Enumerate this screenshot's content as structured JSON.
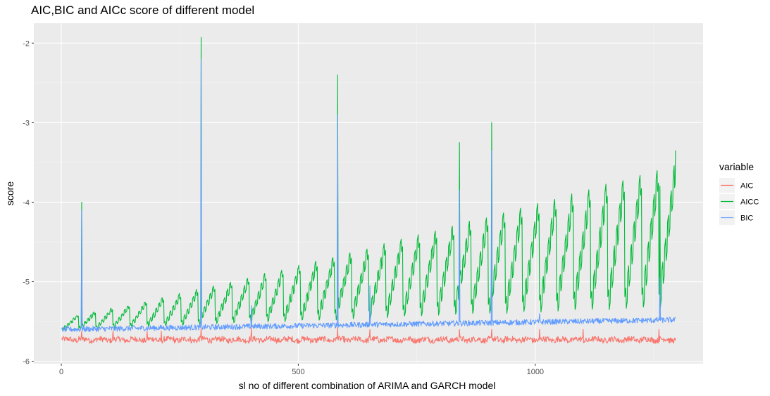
{
  "chart_data": {
    "type": "line",
    "title": "AIC,BIC and AICc score of different model",
    "xlabel": "sl no of different combination of ARIMA and GARCH model",
    "ylabel": "score",
    "xlim": [
      -58,
      1354
    ],
    "ylim": [
      -6.03,
      -1.75
    ],
    "x_ticks": [
      0,
      500,
      1000
    ],
    "x_tick_labels": [
      "0",
      "500",
      "1000"
    ],
    "y_ticks": [
      -6,
      -5,
      -4,
      -3,
      -2
    ],
    "y_tick_labels": [
      "-6",
      "-5",
      "-4",
      "-3",
      "-2"
    ],
    "x_count": 1296,
    "grid": true,
    "legend": {
      "title": "variable",
      "position": "right",
      "entries": [
        "AIC",
        "AICC",
        "BIC"
      ]
    },
    "colors": {
      "AIC": "#F8766D",
      "AICC": "#00BA38",
      "BIC": "#619CFF"
    },
    "series": [
      {
        "name": "AIC",
        "baseline": -5.72,
        "noise": 0.035,
        "cycle_length": 36,
        "spikes": [
          {
            "x": 42,
            "y": -5.62
          },
          {
            "x": 108,
            "y": -5.62
          },
          {
            "x": 180,
            "y": -5.62
          },
          {
            "x": 210,
            "y": -5.62
          },
          {
            "x": 294,
            "y": -5.58
          },
          {
            "x": 400,
            "y": -5.58
          },
          {
            "x": 582,
            "y": -5.58
          },
          {
            "x": 650,
            "y": -5.6
          },
          {
            "x": 839,
            "y": -5.6
          },
          {
            "x": 907,
            "y": -5.6
          },
          {
            "x": 1008,
            "y": -5.6
          },
          {
            "x": 1100,
            "y": -5.6
          },
          {
            "x": 1260,
            "y": -5.6
          }
        ]
      },
      {
        "name": "AICC",
        "baseline": -5.6,
        "cycle_length": 36,
        "sub_period": 6,
        "amplitude_start": 0.15,
        "amplitude_end": 1.8,
        "base_end": -5.1,
        "spikes": [
          {
            "x": 42,
            "y": -4.0
          },
          {
            "x": 294,
            "y": -1.93
          },
          {
            "x": 582,
            "y": -2.4
          },
          {
            "x": 839,
            "y": -3.25
          },
          {
            "x": 907,
            "y": -3.0
          },
          {
            "x": 1262,
            "y": -3.8
          }
        ],
        "end_value": -3.35
      },
      {
        "name": "BIC",
        "baseline": -5.6,
        "baseline_end": -5.48,
        "noise": 0.035,
        "cycle_length": 36,
        "spikes": [
          {
            "x": 42,
            "y": -4.1
          },
          {
            "x": 294,
            "y": -2.2
          },
          {
            "x": 400,
            "y": -5.3
          },
          {
            "x": 582,
            "y": -2.9
          },
          {
            "x": 650,
            "y": -5.05
          },
          {
            "x": 839,
            "y": -3.85
          },
          {
            "x": 907,
            "y": -3.35
          },
          {
            "x": 1008,
            "y": -5.4
          },
          {
            "x": 1262,
            "y": -4.95
          }
        ]
      }
    ]
  }
}
